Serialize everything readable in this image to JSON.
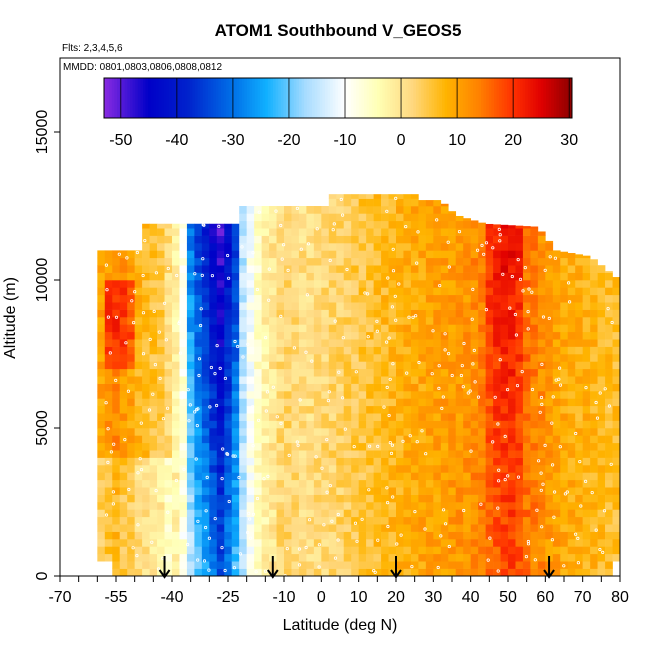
{
  "chart_data": {
    "type": "heatmap",
    "title": "ATOM1 Southbound V_GEOS5",
    "subtitle_flights": "Flts: 2,3,4,5,6",
    "subtitle_dates": "MMDD: 0801,0803,0806,0808,0812",
    "xlabel": "Latitude (deg N)",
    "ylabel": "Altitude (m)",
    "xlim": [
      -70,
      80
    ],
    "ylim": [
      0,
      17500
    ],
    "x_ticks": [
      -70,
      -55,
      -40,
      -25,
      -10,
      0,
      10,
      20,
      30,
      40,
      50,
      60,
      70,
      80
    ],
    "x_tick_labels": [
      "-70",
      "-55",
      "-40",
      "-25",
      "-10",
      "0",
      "10",
      "20",
      "30",
      "40",
      "50",
      "60",
      "70",
      "80"
    ],
    "y_ticks": [
      0,
      5000,
      10000,
      15000
    ],
    "y_tick_labels": [
      "0",
      "5000",
      "10000",
      "15000"
    ],
    "colorbar": {
      "min": -53,
      "max": 30.5,
      "ticks": [
        -50,
        -40,
        -30,
        -20,
        -10,
        0,
        10,
        20,
        30
      ],
      "tick_labels": [
        "-50",
        "-40",
        "-30",
        "-20",
        "-10",
        "0",
        "10",
        "20",
        "30"
      ],
      "stops": [
        {
          "v": -53,
          "color": "#8a2be2"
        },
        {
          "v": -45,
          "color": "#0000c8"
        },
        {
          "v": -38,
          "color": "#0022cc"
        },
        {
          "v": -30,
          "color": "#0070e8"
        },
        {
          "v": -24,
          "color": "#10b0ff"
        },
        {
          "v": -17,
          "color": "#a8dcff"
        },
        {
          "v": -10,
          "color": "#ffffff"
        },
        {
          "v": -4,
          "color": "#ffffb4"
        },
        {
          "v": 2,
          "color": "#ffd880"
        },
        {
          "v": 8,
          "color": "#ffb400"
        },
        {
          "v": 14,
          "color": "#ff8000"
        },
        {
          "v": 20,
          "color": "#ff3000"
        },
        {
          "v": 25,
          "color": "#e00000"
        },
        {
          "v": 30.5,
          "color": "#8b0000"
        }
      ]
    },
    "arrow_latitudes": [
      -42,
      -13,
      20,
      61
    ],
    "altitude_ceiling": [
      {
        "lat": -56,
        "alt": 11000
      },
      {
        "lat": -49,
        "alt": 11000
      },
      {
        "lat": -48,
        "alt": 11900
      },
      {
        "lat": -23,
        "alt": 11900
      },
      {
        "lat": -22,
        "alt": 12500
      },
      {
        "lat": 2,
        "alt": 12500
      },
      {
        "lat": 3,
        "alt": 12900
      },
      {
        "lat": 26,
        "alt": 12900
      },
      {
        "lat": 27,
        "alt": 12700
      },
      {
        "lat": 32,
        "alt": 12700
      },
      {
        "lat": 36,
        "alt": 12200
      },
      {
        "lat": 44,
        "alt": 11900
      },
      {
        "lat": 58,
        "alt": 11800
      },
      {
        "lat": 63,
        "alt": 11000
      },
      {
        "lat": 72,
        "alt": 10800
      },
      {
        "lat": 80,
        "alt": 10000
      }
    ],
    "lat_profile": [
      {
        "lat": -60,
        "v": 9
      },
      {
        "lat": -55,
        "v": 13
      },
      {
        "lat": -48,
        "v": 7
      },
      {
        "lat": -43,
        "v": 5
      },
      {
        "lat": -38,
        "v": -4
      },
      {
        "lat": -34,
        "v": -18
      },
      {
        "lat": -30,
        "v": -27
      },
      {
        "lat": -27,
        "v": -34
      },
      {
        "lat": -24,
        "v": -25
      },
      {
        "lat": -20,
        "v": -12
      },
      {
        "lat": -16,
        "v": -3
      },
      {
        "lat": -10,
        "v": 3
      },
      {
        "lat": -5,
        "v": 1
      },
      {
        "lat": 0,
        "v": 2
      },
      {
        "lat": 5,
        "v": 3
      },
      {
        "lat": 10,
        "v": 5
      },
      {
        "lat": 18,
        "v": 7
      },
      {
        "lat": 25,
        "v": 9
      },
      {
        "lat": 30,
        "v": 10
      },
      {
        "lat": 35,
        "v": 11
      },
      {
        "lat": 40,
        "v": 12
      },
      {
        "lat": 45,
        "v": 15
      },
      {
        "lat": 50,
        "v": 19
      },
      {
        "lat": 55,
        "v": 15
      },
      {
        "lat": 60,
        "v": 12
      },
      {
        "lat": 65,
        "v": 9
      },
      {
        "lat": 70,
        "v": 8
      },
      {
        "lat": 80,
        "v": 6
      }
    ]
  }
}
